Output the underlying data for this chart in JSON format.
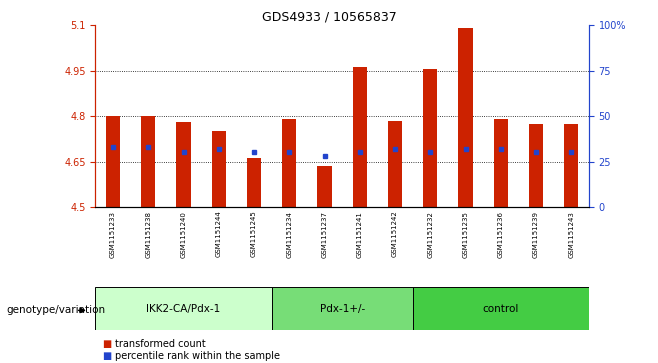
{
  "title": "GDS4933 / 10565837",
  "samples": [
    "GSM1151233",
    "GSM1151238",
    "GSM1151240",
    "GSM1151244",
    "GSM1151245",
    "GSM1151234",
    "GSM1151237",
    "GSM1151241",
    "GSM1151242",
    "GSM1151232",
    "GSM1151235",
    "GSM1151236",
    "GSM1151239",
    "GSM1151243"
  ],
  "transformed_count": [
    4.8,
    4.802,
    4.78,
    4.75,
    4.662,
    4.79,
    4.634,
    4.962,
    4.785,
    4.956,
    5.092,
    4.792,
    4.773,
    4.773
  ],
  "percentile_rank": [
    33,
    33,
    30,
    32,
    30,
    30,
    28,
    30,
    32,
    30,
    32,
    32,
    30,
    30
  ],
  "ylim_left": [
    4.5,
    5.1
  ],
  "ylim_right": [
    0,
    100
  ],
  "yticks_left": [
    4.5,
    4.65,
    4.8,
    4.95,
    5.1
  ],
  "ytick_labels_left": [
    "4.5",
    "4.65",
    "4.8",
    "4.95",
    "5.1"
  ],
  "yticks_right": [
    0,
    25,
    50,
    75,
    100
  ],
  "ytick_labels_right": [
    "0",
    "25",
    "50",
    "75",
    "100%"
  ],
  "gridlines": [
    4.65,
    4.8,
    4.95
  ],
  "groups": [
    {
      "label": "IKK2-CA/Pdx-1",
      "start": 0,
      "end": 5,
      "color": "#ccffcc"
    },
    {
      "label": "Pdx-1+/-",
      "start": 5,
      "end": 9,
      "color": "#77dd77"
    },
    {
      "label": "control",
      "start": 9,
      "end": 14,
      "color": "#44cc44"
    }
  ],
  "bar_color": "#cc2200",
  "dot_color": "#2244cc",
  "base": 4.5,
  "bar_width": 0.4,
  "background_color": "#ffffff",
  "plot_bg": "#ffffff",
  "tick_color_left": "#cc2200",
  "tick_color_right": "#2244cc",
  "xlabel_text": "genotype/variation",
  "label_bg_color": "#cccccc",
  "legend_items": [
    {
      "color": "#cc2200",
      "label": "transformed count"
    },
    {
      "color": "#2244cc",
      "label": "percentile rank within the sample"
    }
  ]
}
